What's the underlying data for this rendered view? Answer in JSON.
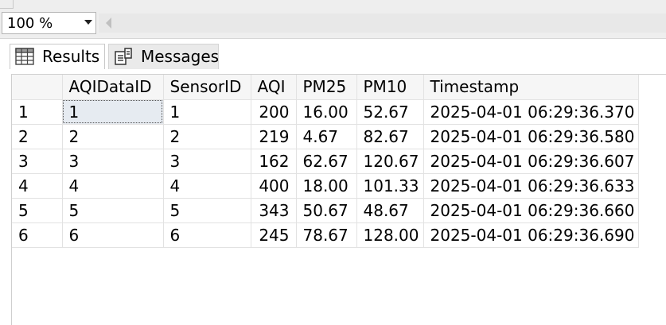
{
  "zoom": {
    "value": "100 %"
  },
  "tabs": {
    "results_label": "Results",
    "messages_label": "Messages"
  },
  "grid": {
    "columns": [
      "AQIDataID",
      "SensorID",
      "AQI",
      "PM25",
      "PM10",
      "Timestamp"
    ],
    "rows": [
      {
        "rownum": "1",
        "AQIDataID": "1",
        "SensorID": "1",
        "AQI": "200",
        "PM25": "16.00",
        "PM10": "52.67",
        "Timestamp": "2025-04-01 06:29:36.370"
      },
      {
        "rownum": "2",
        "AQIDataID": "2",
        "SensorID": "2",
        "AQI": "219",
        "PM25": "4.67",
        "PM10": "82.67",
        "Timestamp": "2025-04-01 06:29:36.580"
      },
      {
        "rownum": "3",
        "AQIDataID": "3",
        "SensorID": "3",
        "AQI": "162",
        "PM25": "62.67",
        "PM10": "120.67",
        "Timestamp": "2025-04-01 06:29:36.607"
      },
      {
        "rownum": "4",
        "AQIDataID": "4",
        "SensorID": "4",
        "AQI": "400",
        "PM25": "18.00",
        "PM10": "101.33",
        "Timestamp": "2025-04-01 06:29:36.633"
      },
      {
        "rownum": "5",
        "AQIDataID": "5",
        "SensorID": "5",
        "AQI": "343",
        "PM25": "50.67",
        "PM10": "48.67",
        "Timestamp": "2025-04-01 06:29:36.660"
      },
      {
        "rownum": "6",
        "AQIDataID": "6",
        "SensorID": "6",
        "AQI": "245",
        "PM25": "78.67",
        "PM10": "128.00",
        "Timestamp": "2025-04-01 06:29:36.690"
      }
    ]
  },
  "colors": {
    "selected_cell": "#e6ebf1",
    "header_bg": "#f6f6f6"
  },
  "icons": [
    "grid-icon",
    "messages-icon",
    "chevron-down-icon",
    "scroll-left-icon"
  ]
}
